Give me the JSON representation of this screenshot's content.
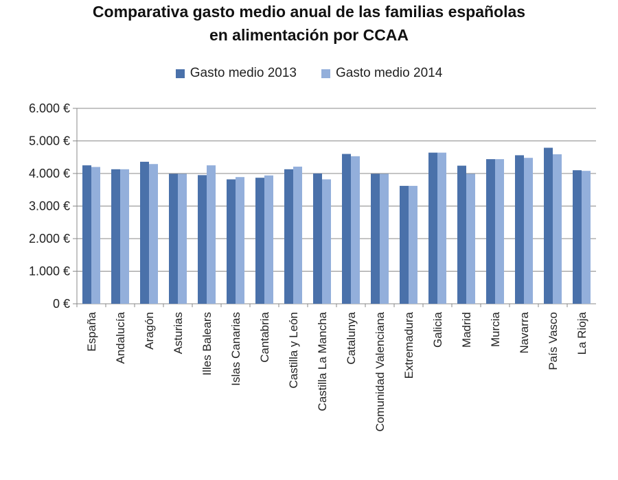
{
  "chart_data": {
    "type": "bar",
    "title": "Comparativa gasto medio anual de las familias españolas en alimentación por CCAA",
    "title_lines": [
      "Comparativa gasto medio anual de las familias españolas",
      "en alimentación por CCAA"
    ],
    "xlabel": "",
    "ylabel": "",
    "ylim": [
      0,
      6000
    ],
    "yticks": [
      0,
      1000,
      2000,
      3000,
      4000,
      5000,
      6000
    ],
    "ytick_labels": [
      "0 €",
      "1.000 €",
      "2.000 €",
      "3.000 €",
      "4.000 €",
      "5.000 €",
      "6.000 €"
    ],
    "grid": true,
    "legend_position": "top",
    "categories": [
      "España",
      "Andalucía",
      "Aragón",
      "Asturias",
      "Illes Balears",
      "Islas Canarias",
      "Cantabria",
      "Castilla y León",
      "Castilla La Mancha",
      "Catalunya",
      "Comunidad Valenciana",
      "Extremadura",
      "Galicia",
      "Madrid",
      "Murcia",
      "Navarra",
      "País Vasco",
      "La Rioja"
    ],
    "series": [
      {
        "name": "Gasto medio 2013",
        "color": "#4a71aa",
        "values": [
          4250,
          4130,
          4360,
          3990,
          3950,
          3820,
          3870,
          4130,
          4000,
          4600,
          3990,
          3620,
          4640,
          4240,
          4440,
          4560,
          4790,
          4100
        ]
      },
      {
        "name": "Gasto medio 2014",
        "color": "#93afdb",
        "values": [
          4200,
          4130,
          4290,
          3990,
          4250,
          3890,
          3940,
          4210,
          3820,
          4530,
          3990,
          3620,
          4640,
          3990,
          4440,
          4480,
          4590,
          4080
        ]
      }
    ]
  }
}
